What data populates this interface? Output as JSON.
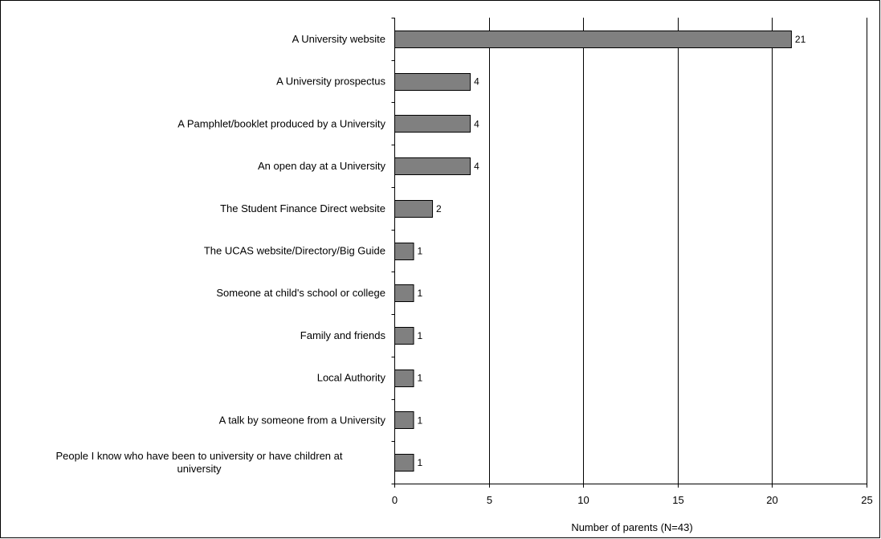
{
  "chart_data": {
    "type": "bar",
    "orientation": "horizontal",
    "categories": [
      "A University website",
      "A University prospectus",
      "A Pamphlet/booklet produced by a University",
      "An open day at a University",
      "The Student Finance Direct website",
      "The UCAS website/Directory/Big Guide",
      "Someone at child's school or college",
      "Family and friends",
      "Local Authority",
      "A talk by someone from a University",
      "People I know who have been to university or have children at university"
    ],
    "category_lines": [
      [
        "A University website"
      ],
      [
        "A University prospectus"
      ],
      [
        "A Pamphlet/booklet produced by a University"
      ],
      [
        "An open day at a University"
      ],
      [
        "The Student Finance Direct website"
      ],
      [
        "The UCAS website/Directory/Big Guide"
      ],
      [
        "Someone at child's school or college"
      ],
      [
        "Family and friends"
      ],
      [
        "Local Authority"
      ],
      [
        "A talk by someone from a University"
      ],
      [
        "People I know who have been to university or have children at",
        "university"
      ]
    ],
    "values": [
      21,
      4,
      4,
      4,
      2,
      1,
      1,
      1,
      1,
      1,
      1
    ],
    "data_labels": [
      "21",
      "4",
      "4",
      "4",
      "2",
      "1",
      "1",
      "1",
      "1",
      "1",
      "1"
    ],
    "xlabel": "Number of parents (N=43)",
    "ylabel": "",
    "xlim": [
      0,
      25
    ],
    "xticks": [
      0,
      5,
      10,
      15,
      20,
      25
    ],
    "grid": "vertical",
    "legend": "none",
    "colors": {
      "bar": "#808080",
      "bar_border": "#000000",
      "grid": "#000000",
      "background": "#ffffff"
    }
  }
}
